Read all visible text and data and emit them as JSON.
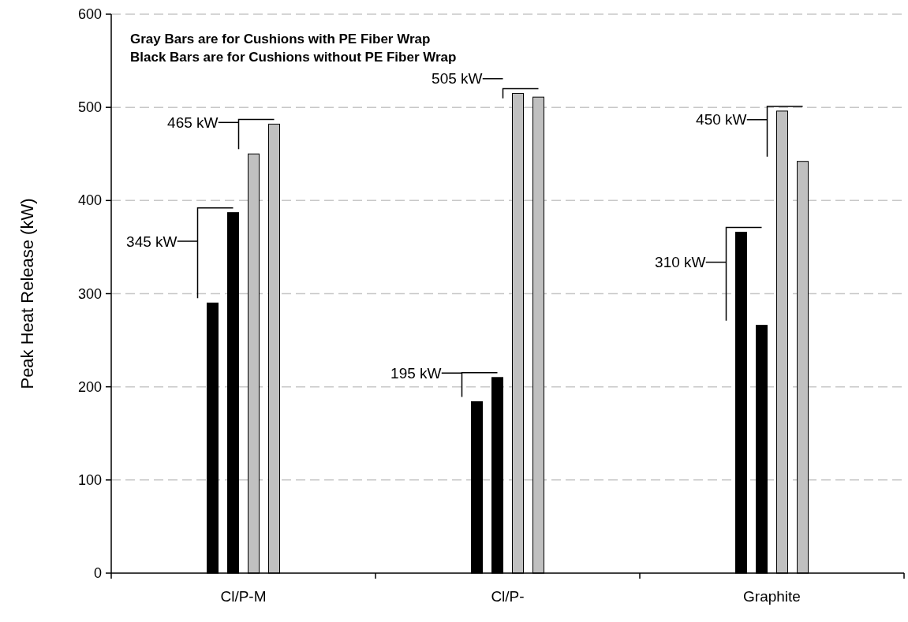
{
  "chart_data": {
    "type": "bar",
    "ylabel": "Peak Heat Release (kW)",
    "categories": [
      "Cl/P-M",
      "Cl/P-",
      "Graphite"
    ],
    "series": [
      {
        "color": "#000000",
        "values": [
          290,
          184,
          366
        ]
      },
      {
        "color": "#000000",
        "values": [
          387,
          210,
          266
        ]
      },
      {
        "color": "#c0c0c0",
        "values": [
          450,
          515,
          496
        ]
      },
      {
        "color": "#c0c0c0",
        "values": [
          482,
          511,
          442
        ]
      }
    ],
    "ylim": [
      0,
      600
    ],
    "yticks": [
      0,
      100,
      200,
      300,
      400,
      500,
      600
    ],
    "grid": "y",
    "annotations": [
      "Gray Bars are for Cushions with PE Fiber Wrap",
      "Black Bars are for Cushions without PE Fiber Wrap",
      "345 kW",
      "465 kW",
      "195 kW",
      "505 kW",
      "310 kW",
      "450 kW"
    ]
  }
}
